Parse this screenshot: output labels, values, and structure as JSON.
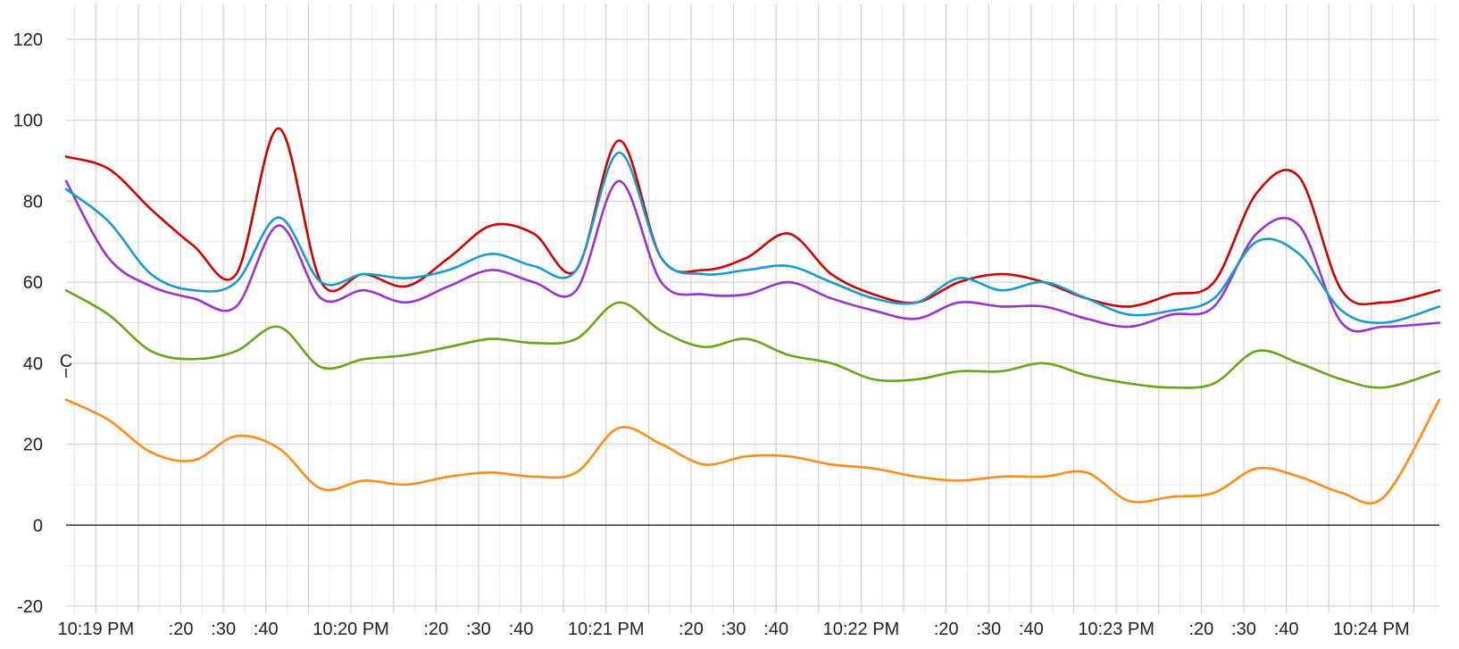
{
  "chart_data": {
    "type": "line",
    "title": "",
    "xlabel": "",
    "ylabel": "",
    "ylim": [
      -20,
      120
    ],
    "y_ticks": [
      -20,
      0,
      20,
      40,
      60,
      80,
      100,
      120
    ],
    "x_start": "10:18:53 PM",
    "x_end": "10:24:16 PM",
    "x_tick_labels": [
      {
        "t": "10:19:00",
        "label": "10:19 PM"
      },
      {
        "t": "10:19:20",
        "label": ":20"
      },
      {
        "t": "10:19:30",
        "label": ":30"
      },
      {
        "t": "10:19:40",
        "label": ":40"
      },
      {
        "t": "10:20:00",
        "label": "10:20 PM"
      },
      {
        "t": "10:20:20",
        "label": ":20"
      },
      {
        "t": "10:20:30",
        "label": ":30"
      },
      {
        "t": "10:20:40",
        "label": ":40"
      },
      {
        "t": "10:21:00",
        "label": "10:21 PM"
      },
      {
        "t": "10:21:20",
        "label": ":20"
      },
      {
        "t": "10:21:30",
        "label": ":30"
      },
      {
        "t": "10:21:40",
        "label": ":40"
      },
      {
        "t": "10:22:00",
        "label": "10:22 PM"
      },
      {
        "t": "10:22:20",
        "label": ":20"
      },
      {
        "t": "10:22:30",
        "label": ":30"
      },
      {
        "t": "10:22:40",
        "label": ":40"
      },
      {
        "t": "10:23:00",
        "label": "10:23 PM"
      },
      {
        "t": "10:23:20",
        "label": ":20"
      },
      {
        "t": "10:23:30",
        "label": ":30"
      },
      {
        "t": "10:23:40",
        "label": ":40"
      },
      {
        "t": "10:24:00",
        "label": "10:24 PM"
      }
    ],
    "x_sample_times": [
      "10:18:53",
      "10:19:03",
      "10:19:13",
      "10:19:23",
      "10:19:33",
      "10:19:43",
      "10:19:53",
      "10:20:03",
      "10:20:13",
      "10:20:23",
      "10:20:33",
      "10:20:43",
      "10:20:53",
      "10:21:03",
      "10:21:13",
      "10:21:23",
      "10:21:33",
      "10:21:43",
      "10:21:53",
      "10:22:03",
      "10:22:13",
      "10:22:23",
      "10:22:33",
      "10:22:43",
      "10:22:53",
      "10:23:03",
      "10:23:13",
      "10:23:23",
      "10:23:33",
      "10:23:43",
      "10:23:53",
      "10:24:03",
      "10:24:16"
    ],
    "grid": true,
    "legend": "none",
    "annotation": {
      "label": "C",
      "value": 40
    },
    "series": [
      {
        "color": "#cc0000",
        "values": [
          91,
          88,
          78,
          69,
          62,
          98,
          60,
          62,
          59,
          66,
          74,
          72,
          63,
          95,
          66,
          63,
          66,
          72,
          62,
          57,
          55,
          60,
          62,
          60,
          56,
          54,
          57,
          60,
          82,
          86,
          58,
          55,
          58
        ]
      },
      {
        "color": "#9933cc",
        "values": [
          85,
          66,
          59,
          56,
          54,
          74,
          56,
          58,
          55,
          59,
          63,
          60,
          58,
          85,
          60,
          57,
          57,
          60,
          56,
          53,
          51,
          55,
          54,
          54,
          51,
          49,
          52,
          54,
          72,
          74,
          50,
          49,
          50
        ]
      },
      {
        "color": "#1a9acc",
        "values": [
          83,
          75,
          62,
          58,
          60,
          76,
          60,
          62,
          61,
          63,
          67,
          64,
          63,
          92,
          66,
          62,
          63,
          64,
          60,
          56,
          55,
          61,
          58,
          60,
          56,
          52,
          53,
          56,
          70,
          67,
          53,
          50,
          54
        ]
      },
      {
        "color": "#66a51c",
        "values": [
          58,
          52,
          43,
          41,
          43,
          49,
          39,
          41,
          42,
          44,
          46,
          45,
          46,
          55,
          48,
          44,
          46,
          42,
          40,
          36,
          36,
          38,
          38,
          40,
          37,
          35,
          34,
          35,
          43,
          40,
          36,
          34,
          38
        ]
      },
      {
        "color": "#ff8c1a",
        "values": [
          31,
          26,
          18,
          16,
          22,
          19,
          9,
          11,
          10,
          12,
          13,
          12,
          13,
          24,
          20,
          15,
          17,
          17,
          15,
          14,
          12,
          11,
          12,
          12,
          13,
          6,
          7,
          8,
          14,
          12,
          8,
          7,
          31
        ]
      }
    ]
  }
}
